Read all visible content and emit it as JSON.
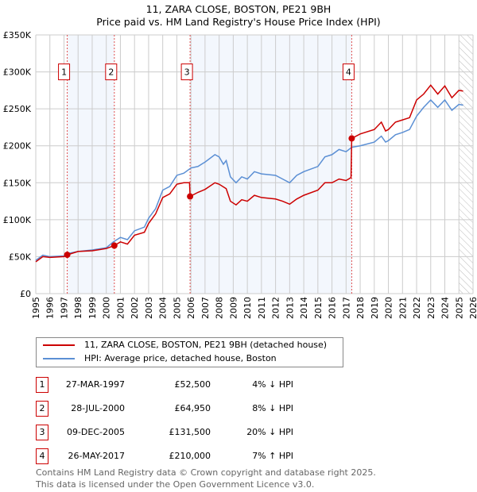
{
  "chart_data": {
    "type": "line",
    "title": "11, ZARA CLOSE, BOSTON, PE21 9BH",
    "subtitle": "Price paid vs. HM Land Registry's House Price Index (HPI)",
    "xlim": [
      1995,
      2026
    ],
    "ylim": [
      0,
      350000
    ],
    "x_ticks": [
      "1995",
      "1996",
      "1997",
      "1998",
      "1999",
      "2000",
      "2001",
      "2002",
      "2003",
      "2004",
      "2005",
      "2006",
      "2007",
      "2008",
      "2009",
      "2010",
      "2011",
      "2012",
      "2013",
      "2014",
      "2015",
      "2016",
      "2017",
      "2018",
      "2019",
      "2020",
      "2021",
      "2022",
      "2023",
      "2024",
      "2025",
      "2026"
    ],
    "y_ticks": [
      {
        "v": 0,
        "label": "£0"
      },
      {
        "v": 50000,
        "label": "£50K"
      },
      {
        "v": 100000,
        "label": "£100K"
      },
      {
        "v": 150000,
        "label": "£150K"
      },
      {
        "v": 200000,
        "label": "£200K"
      },
      {
        "v": 250000,
        "label": "£250K"
      },
      {
        "v": 300000,
        "label": "£300K"
      },
      {
        "v": 350000,
        "label": "£350K"
      }
    ],
    "grid": true,
    "forecast_hatch_from": 2025.0,
    "series": [
      {
        "name": "11, ZARA CLOSE, BOSTON, PE21 9BH (detached house)",
        "color": "#cc0000",
        "x": [
          1995,
          1995.5,
          1996,
          1997,
          1997.23,
          1998,
          1999,
          2000,
          2000.57,
          2001,
          2001.5,
          2002,
          2002.7,
          2003,
          2003.5,
          2004,
          2004.5,
          2005,
          2005.5,
          2005.9,
          2005.94,
          2006.5,
          2007,
          2007.7,
          2008,
          2008.5,
          2008.8,
          2009.2,
          2009.6,
          2010,
          2010.5,
          2011,
          2012,
          2012.5,
          2013,
          2013.5,
          2014,
          2015,
          2015.5,
          2016,
          2016.5,
          2017,
          2017.35,
          2017.4,
          2018,
          2019,
          2019.5,
          2019.8,
          2020,
          2020.5,
          2021,
          2021.5,
          2022,
          2022.5,
          2023,
          2023.5,
          2024,
          2024.5,
          2025,
          2025.3
        ],
        "y": [
          43000,
          50000,
          49000,
          50000,
          52500,
          57000,
          58000,
          61000,
          64950,
          70000,
          67000,
          79000,
          83000,
          95000,
          108000,
          130000,
          135000,
          148000,
          150000,
          150000,
          131500,
          137000,
          141000,
          150000,
          148000,
          142000,
          125000,
          120000,
          127000,
          125000,
          133000,
          130000,
          128000,
          125000,
          121000,
          128000,
          133000,
          140000,
          150000,
          150000,
          155000,
          153000,
          157000,
          210000,
          216000,
          222000,
          232000,
          220000,
          222000,
          232000,
          235000,
          238000,
          262000,
          270000,
          282000,
          270000,
          281000,
          265000,
          275000,
          274000
        ]
      },
      {
        "name": "HPI: Average price, detached house, Boston",
        "color": "#5b8fd4",
        "x": [
          1995,
          1995.5,
          1996,
          1997,
          1997.2,
          1998,
          1999,
          2000,
          2000.5,
          2001,
          2001.5,
          2002,
          2002.7,
          2003,
          2003.5,
          2004,
          2004.5,
          2005,
          2005.5,
          2006,
          2006.5,
          2007,
          2007.7,
          2008,
          2008.3,
          2008.5,
          2008.8,
          2009.2,
          2009.6,
          2010,
          2010.5,
          2011,
          2012,
          2012.5,
          2013,
          2013.5,
          2014,
          2015,
          2015.5,
          2016,
          2016.5,
          2017,
          2017.4,
          2018,
          2019,
          2019.5,
          2019.8,
          2020,
          2020.5,
          2021,
          2021.5,
          2022,
          2022.5,
          2023,
          2023.5,
          2024,
          2024.5,
          2025,
          2025.3
        ],
        "y": [
          45000,
          52000,
          50000,
          51000,
          54000,
          57000,
          59000,
          62000,
          70000,
          76000,
          73000,
          85000,
          90000,
          102000,
          115000,
          140000,
          145000,
          160000,
          163000,
          170000,
          172000,
          178000,
          188000,
          185000,
          175000,
          180000,
          158000,
          150000,
          158000,
          155000,
          165000,
          162000,
          160000,
          155000,
          150000,
          160000,
          165000,
          172000,
          185000,
          188000,
          195000,
          192000,
          198000,
          200000,
          205000,
          213000,
          205000,
          207000,
          215000,
          218000,
          222000,
          240000,
          252000,
          262000,
          252000,
          262000,
          248000,
          256000,
          255000
        ]
      }
    ],
    "sales": [
      {
        "n": "1",
        "x": 1997.23,
        "y": 52500,
        "date": "27-MAR-1997",
        "price": "£52,500",
        "hpi": "4% ↓ HPI"
      },
      {
        "n": "2",
        "x": 2000.57,
        "y": 64950,
        "date": "28-JUL-2000",
        "price": "£64,950",
        "hpi": "8% ↓ HPI"
      },
      {
        "n": "3",
        "x": 2005.94,
        "y": 131500,
        "date": "09-DEC-2005",
        "price": "£131,500",
        "hpi": "20% ↓ HPI"
      },
      {
        "n": "4",
        "x": 2017.4,
        "y": 210000,
        "date": "26-MAY-2017",
        "price": "£210,000",
        "hpi": "7% ↑ HPI"
      }
    ],
    "shaded_spans": [
      [
        1997.23,
        2000.57
      ],
      [
        2005.94,
        2017.4
      ]
    ],
    "marker_label_y": 300000
  },
  "legend": {
    "red": "11, ZARA CLOSE, BOSTON, PE21 9BH (detached house)",
    "blue": "HPI: Average price, detached house, Boston"
  },
  "footer": {
    "line1": "Contains HM Land Registry data © Crown copyright and database right 2025.",
    "line2": "This data is licensed under the Open Government Licence v3.0."
  }
}
